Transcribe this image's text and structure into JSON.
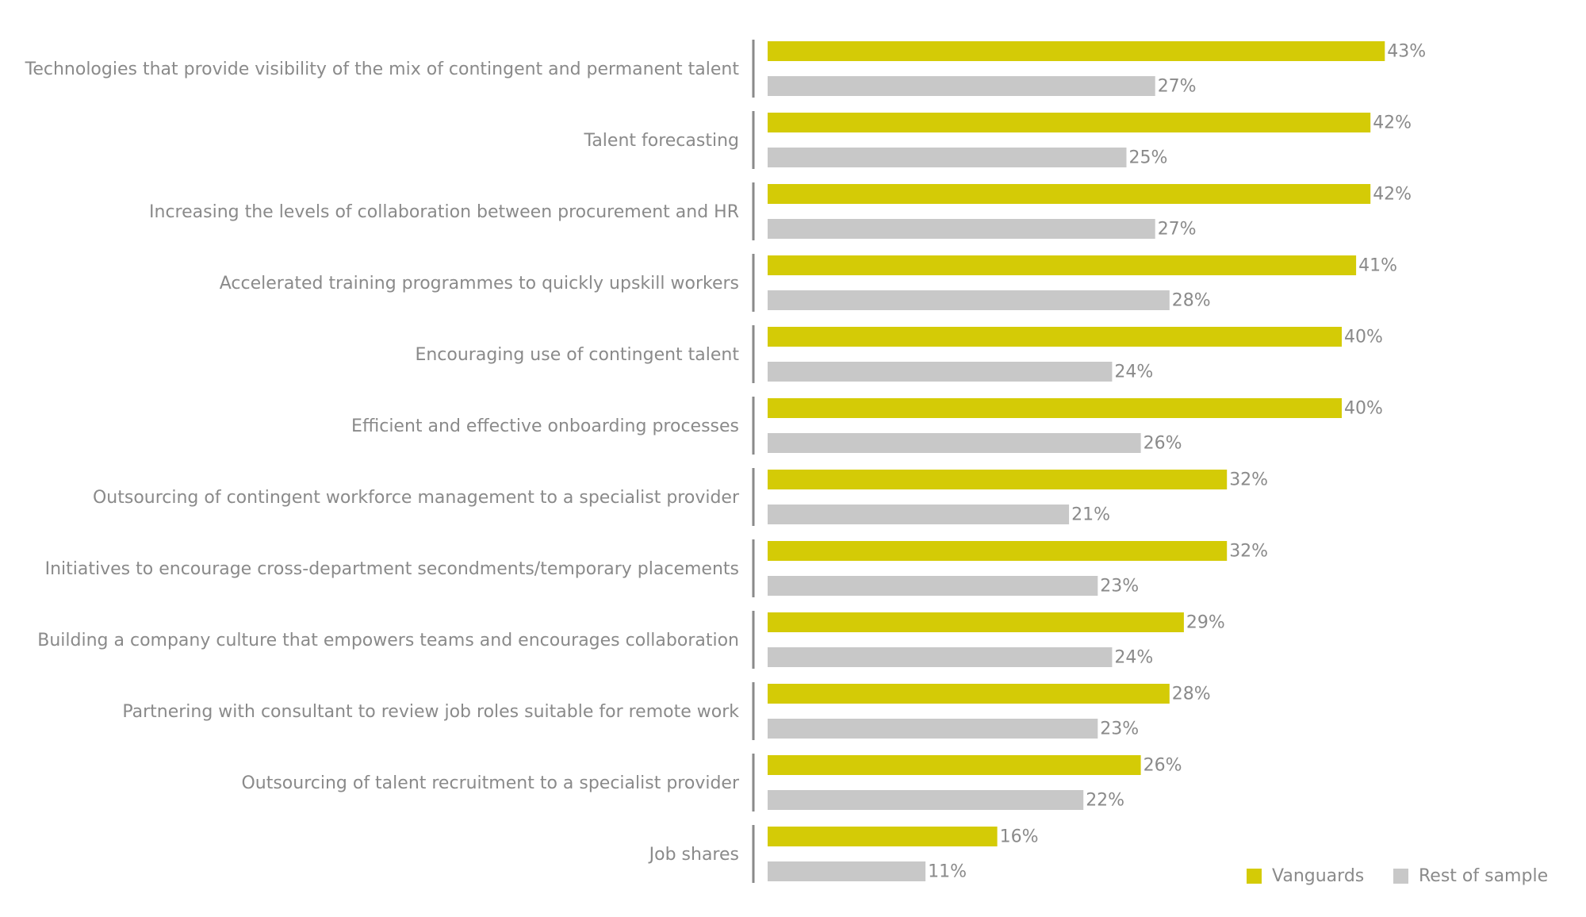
{
  "chart_data": {
    "type": "bar",
    "orientation": "horizontal",
    "categories": [
      "Technologies that provide visibility of the mix of contingent and permanent talent",
      "Talent forecasting",
      "Increasing the levels of collaboration between procurement and HR",
      "Accelerated training programmes to quickly upskill workers",
      "Encouraging use of contingent talent",
      "Efficient and effective onboarding processes",
      "Outsourcing of contingent workforce management to a specialist provider",
      "Initiatives to encourage cross-department secondments/temporary placements",
      "Building a company culture that empowers teams and encourages collaboration",
      "Partnering with consultant to review job roles suitable for remote work",
      "Outsourcing of talent recruitment to a specialist provider",
      "Job shares"
    ],
    "series": [
      {
        "name": "Vanguards",
        "color": "#d4cb06",
        "values": [
          43,
          42,
          42,
          41,
          40,
          40,
          32,
          32,
          29,
          28,
          26,
          16
        ],
        "labels": [
          "43%",
          "42%",
          "42%",
          "41%",
          "40%",
          "40%",
          "32%",
          "32%",
          "29%",
          "28%",
          "26%",
          "16%"
        ]
      },
      {
        "name": "Rest of sample",
        "color": "#c8c8c8",
        "values": [
          27,
          25,
          27,
          28,
          24,
          26,
          21,
          23,
          24,
          23,
          22,
          11
        ],
        "labels": [
          "27%",
          "25%",
          "27%",
          "28%",
          "24%",
          "26%",
          "21%",
          "23%",
          "24%",
          "23%",
          "22%",
          "11%"
        ]
      }
    ],
    "value_unit": "%",
    "xlim": [
      0,
      43
    ],
    "grid": false,
    "legend": {
      "position": "bottom-right",
      "items": [
        "Vanguards",
        "Rest of sample"
      ]
    },
    "colors": {
      "text": "#8a8a8a",
      "axis": "#8a8a8a"
    }
  }
}
